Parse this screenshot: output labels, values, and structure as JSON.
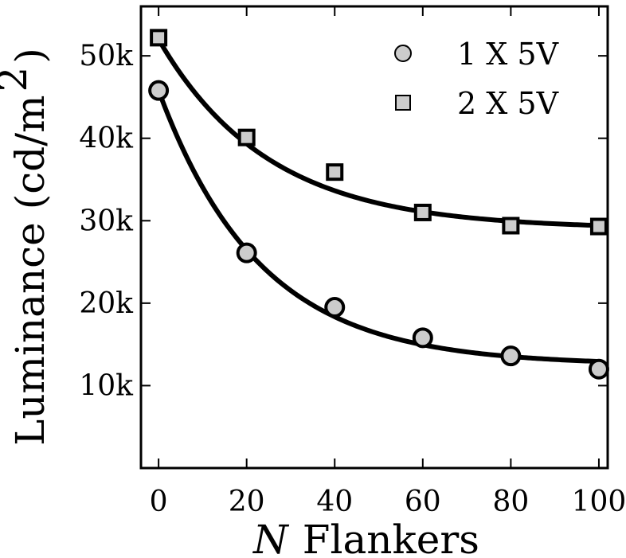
{
  "chart_data": {
    "type": "scatter",
    "xlabel_var": "N",
    "xlabel_rest": "Flankers",
    "ylabel_text": "Luminance",
    "ylabel_unit": "(cd/m",
    "ylabel_sup": "2",
    "ylabel_close": ")",
    "x_ticks": [
      0,
      20,
      40,
      60,
      80,
      100
    ],
    "x_tick_labels": [
      "0",
      "20",
      "40",
      "60",
      "80",
      "100"
    ],
    "y_ticks": [
      10000,
      20000,
      30000,
      40000,
      50000
    ],
    "y_tick_labels": [
      "10k",
      "20k",
      "30k",
      "40k",
      "50k"
    ],
    "xlim": [
      -4,
      102
    ],
    "ylim": [
      0,
      56000
    ],
    "grid": false,
    "legend_position": "top-right",
    "series": [
      {
        "name": "1 X 5V",
        "marker": "circle",
        "color": "#cccccc",
        "x": [
          0,
          20,
          40,
          60,
          80,
          100
        ],
        "y": [
          45800,
          26100,
          19500,
          15800,
          13600,
          12000
        ],
        "fit_asymptote": 12500,
        "fit_amplitude": 33300,
        "fit_tau": 23
      },
      {
        "name": "2 X 5V",
        "marker": "square",
        "color": "#cccccc",
        "x": [
          0,
          20,
          40,
          60,
          80,
          100
        ],
        "y": [
          52200,
          40100,
          35900,
          31000,
          29400,
          29300
        ],
        "fit_asymptote": 29000,
        "fit_amplitude": 23000,
        "fit_tau": 25
      }
    ]
  }
}
